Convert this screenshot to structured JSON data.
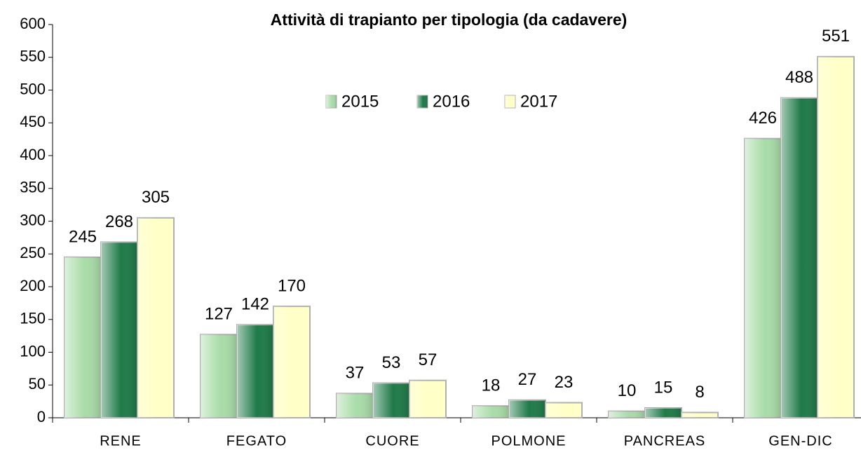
{
  "chart_data": {
    "type": "bar",
    "title": "Attività di trapianto  per tipologia  (da cadavere)",
    "categories": [
      "RENE",
      "FEGATO",
      "CUORE",
      "POLMONE",
      "PANCREAS",
      "GEN-DIC"
    ],
    "series": [
      {
        "name": "2015",
        "color": "#a8dca8",
        "values": [
          245,
          127,
          37,
          18,
          10,
          426
        ]
      },
      {
        "name": "2016",
        "color": "#1e7a48",
        "values": [
          268,
          142,
          53,
          27,
          15,
          488
        ]
      },
      {
        "name": "2017",
        "color": "#ffffc8",
        "values": [
          305,
          170,
          57,
          23,
          8,
          551
        ]
      }
    ],
    "ylim": [
      0,
      600
    ],
    "yticks": [
      0,
      50,
      100,
      150,
      200,
      250,
      300,
      350,
      400,
      450,
      500,
      550,
      600
    ],
    "grid": false,
    "legend": "top"
  }
}
